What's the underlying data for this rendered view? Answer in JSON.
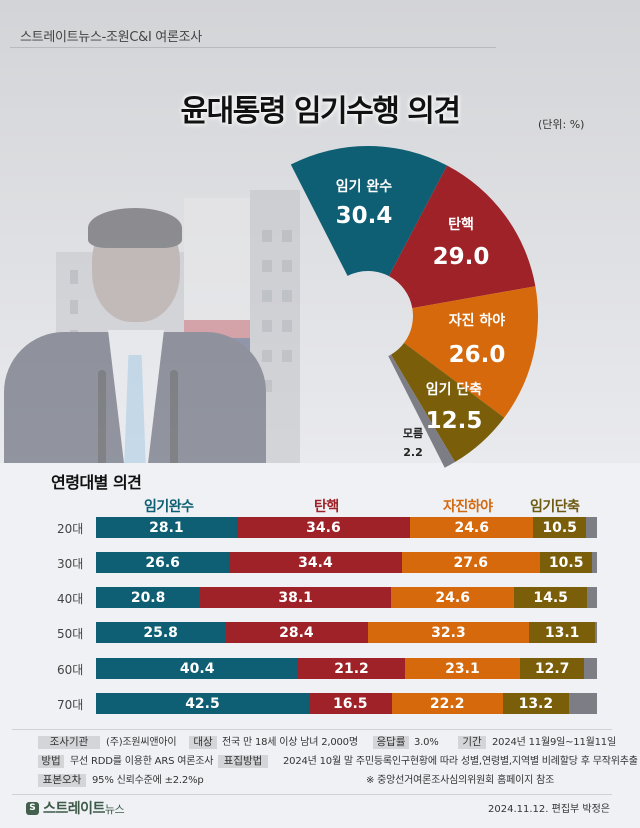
{
  "header": {
    "source": "스트레이트뉴스-조원C&I 여론조사",
    "title": "윤대통령 임기수행 의견",
    "unit": "(단위: %)"
  },
  "colors": {
    "complete_term": "#0e5f73",
    "impeach": "#9e2228",
    "resign": "#d6690c",
    "shorten_term": "#7a5e0a",
    "unknown": "#7d7d86",
    "legend_complete": "#0e5f73",
    "legend_impeach": "#9e2228",
    "legend_resign": "#d26a12",
    "legend_shorten": "#6e5a12"
  },
  "chart_data": [
    {
      "type": "pie",
      "title": "윤대통령 임기수행 의견",
      "unit": "%",
      "categories": [
        "임기 완수",
        "탄핵",
        "자진 하야",
        "임기 단축",
        "모름"
      ],
      "values": [
        30.4,
        29.0,
        26.0,
        12.5,
        2.2
      ],
      "style": "half-donut fan"
    },
    {
      "type": "bar",
      "stacked": true,
      "orientation": "horizontal",
      "title": "연령대별 의견",
      "categories": [
        "20대",
        "30대",
        "40대",
        "50대",
        "60대",
        "70대"
      ],
      "series": [
        {
          "name": "임기완수",
          "values": [
            28.1,
            26.6,
            20.8,
            25.8,
            40.4,
            42.5
          ]
        },
        {
          "name": "탄핵",
          "values": [
            34.6,
            34.4,
            38.1,
            28.4,
            21.2,
            16.5
          ]
        },
        {
          "name": "자진하야",
          "values": [
            24.6,
            27.6,
            24.6,
            32.3,
            23.1,
            22.2
          ]
        },
        {
          "name": "임기단축",
          "values": [
            10.5,
            10.5,
            14.5,
            13.1,
            12.7,
            13.2
          ]
        },
        {
          "name": "모름",
          "values": [
            2.2,
            0.9,
            2.0,
            0.4,
            2.6,
            5.6
          ]
        }
      ]
    }
  ],
  "fan": {
    "slices": [
      {
        "label": "임기 완수",
        "value": "30.4"
      },
      {
        "label": "탄핵",
        "value": "29.0"
      },
      {
        "label": "자진 하야",
        "value": "26.0"
      },
      {
        "label": "임기 단축",
        "value": "12.5"
      },
      {
        "label": "모름",
        "value": "2.2"
      }
    ]
  },
  "age_section": {
    "title": "연령대별 의견",
    "legend": [
      "임기완수",
      "탄핵",
      "자진하야",
      "임기단축"
    ],
    "rows": [
      {
        "label": "20대",
        "values": [
          "28.1",
          "34.6",
          "24.6",
          "10.5"
        ]
      },
      {
        "label": "30대",
        "values": [
          "26.6",
          "34.4",
          "27.6",
          "10.5"
        ]
      },
      {
        "label": "40대",
        "values": [
          "20.8",
          "38.1",
          "24.6",
          "14.5"
        ]
      },
      {
        "label": "50대",
        "values": [
          "25.8",
          "28.4",
          "32.3",
          "13.1"
        ]
      },
      {
        "label": "60대",
        "values": [
          "40.4",
          "21.2",
          "23.1",
          "12.7"
        ]
      },
      {
        "label": "70대",
        "values": [
          "42.5",
          "16.5",
          "22.2",
          "13.2"
        ]
      }
    ]
  },
  "footer": {
    "org_label": "조사기관",
    "org_value": "(주)조원씨앤아이",
    "target_label": "대상",
    "target_value": "전국 만 18세 이상 남녀 2,000명",
    "response_label": "응답률",
    "response_value": "3.0%",
    "period_label": "기간",
    "period_value": "2024년 11월9일~11월11일",
    "method_label": "방법",
    "method_value": "무선 RDD를 이용한 ARS 여론조사",
    "sampling_label": "표집방법",
    "sampling_value": "2024년 10월 말 주민등록인구현황에 따라 성별,연령별,지역별 비례할당 후 무작위추출",
    "error_label": "표본오차",
    "error_value": "95% 신뢰수준에 ±2.2%p",
    "note": "※ 중앙선거여론조사심의위원회 홈페이지 참조",
    "logo_mark": "S",
    "logo_text": "스트레이트",
    "logo_sub": "뉴스",
    "credit": "2024.11.12. 편집부 박정은"
  }
}
